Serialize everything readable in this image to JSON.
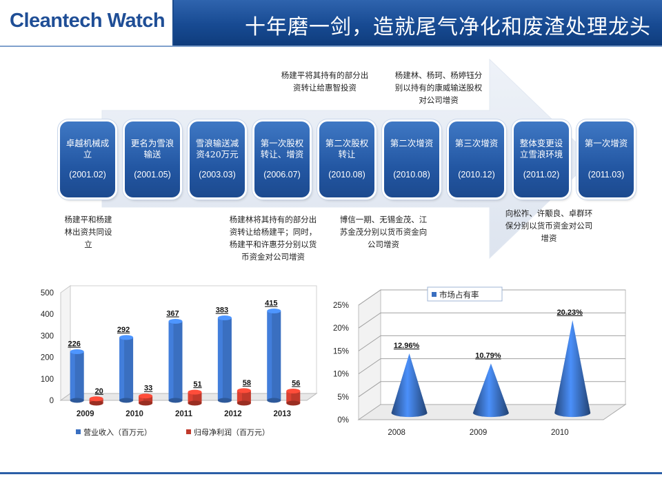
{
  "header": {
    "logo": "Cleantech Watch",
    "title": "十年磨一剑，造就尾气净化和废渣处理龙头"
  },
  "timeline": {
    "stages": [
      {
        "label": "卓越机械成立",
        "date": "(2001.02)"
      },
      {
        "label": "更名为雪浪输送",
        "date": "(2001.05)"
      },
      {
        "label": "雪浪输送减资420万元",
        "date": "(2003.03)"
      },
      {
        "label": "第一次股权转让、增资",
        "date": "(2006.07)"
      },
      {
        "label": "第二次股权转让",
        "date": "(2010.08)"
      },
      {
        "label": "第二次增资",
        "date": "(2010.08)"
      },
      {
        "label": "第三次增资",
        "date": "(2010.12)"
      },
      {
        "label": "整体变更设立雪浪环境",
        "date": "(2011.02)"
      },
      {
        "label": "第一次增资",
        "date": "(2011.03)"
      }
    ],
    "notes_top": [
      "杨建平将其持有的部分出资转让给惠智投资",
      "杨建林、杨珂、杨婷钰分别以持有的康威输送股权对公司增资"
    ],
    "notes_bottom": [
      "杨建平和杨建林出资共同设立",
      "杨建林将其持有的部分出资转让给杨建平；同时，杨建平和许惠芬分别以货币资金对公司增资",
      "博信一期、无锡金茂、江苏金茂分别以货币资金向公司增资",
      "向松祚、许颙良、卓群环保分别以货币资金对公司增资"
    ]
  },
  "chart_data": [
    {
      "type": "bar",
      "categories": [
        "2009",
        "2010",
        "2011",
        "2012",
        "2013"
      ],
      "series": [
        {
          "name": "营业收入（百万元）",
          "values": [
            226,
            292,
            367,
            383,
            415
          ],
          "color": "#3a6fc0"
        },
        {
          "name": "归母净利润（百万元）",
          "values": [
            20,
            33,
            51,
            58,
            56
          ],
          "color": "#c0392b"
        }
      ],
      "ylim": [
        0,
        500
      ],
      "yticks": [
        "0",
        "100",
        "200",
        "300",
        "400",
        "500"
      ],
      "legend": "bottom",
      "grid": false
    },
    {
      "type": "bar",
      "style": "3d-cone",
      "categories": [
        "2008",
        "2009",
        "2010"
      ],
      "series": [
        {
          "name": "市场占有率",
          "values": [
            12.96,
            10.79,
            20.23
          ],
          "labels": [
            "12.96%",
            "10.79%",
            "20.23%"
          ],
          "color": "#3a6fc0"
        }
      ],
      "ylim": [
        0,
        25
      ],
      "yticks": [
        "0%",
        "5%",
        "10%",
        "15%",
        "20%",
        "25%"
      ],
      "legend": "top",
      "grid": true
    }
  ]
}
